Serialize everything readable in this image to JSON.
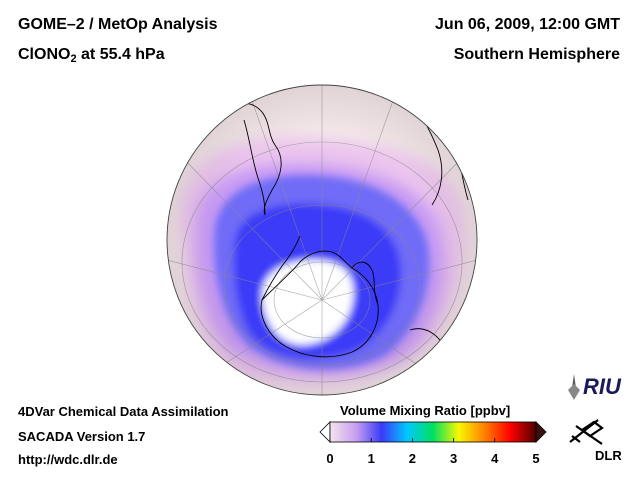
{
  "header": {
    "title_line1": "GOME–2 / MetOp Analysis",
    "title_species": "ClONO",
    "title_sub": "2",
    "title_level": " at 55.4 hPa",
    "date": "Jun 06, 2009, 12:00 GMT",
    "region": "Southern Hemisphere"
  },
  "footer": {
    "line1": "4DVar Chemical Data Assimilation",
    "line2": "SACADA Version 1.7",
    "line3": "http://wdc.dlr.de"
  },
  "colorbar": {
    "title": "Volume Mixing Ratio [ppbv]",
    "ticks": [
      "0",
      "1",
      "2",
      "3",
      "4",
      "5"
    ],
    "min": 0,
    "max": 5,
    "colors": [
      "#f4e4ee",
      "#c9a0f0",
      "#3a3af8",
      "#00c8ff",
      "#00e060",
      "#f8f800",
      "#ff8000",
      "#ff0000",
      "#500000"
    ]
  },
  "logos": {
    "riu": "RIU",
    "dlr": "DLR"
  },
  "map": {
    "projection": "orthographic",
    "hemisphere": "south",
    "background_color": "#f3e6e8",
    "low_color": "#ffffff",
    "band_colors": [
      "#ecc5ee",
      "#c79af4",
      "#6f6cf7",
      "#3a3af8"
    ]
  }
}
